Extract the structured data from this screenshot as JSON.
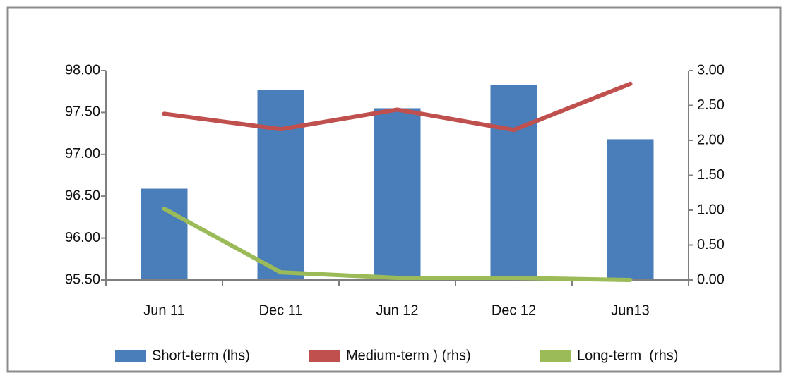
{
  "chart_data": {
    "type": "bar",
    "categories": [
      "Jun 11",
      "Dec 11",
      "Jun 12",
      "Dec 12",
      "Jun13"
    ],
    "series": [
      {
        "name": "Short-term (lhs)",
        "color": "#4a7ebb",
        "type": "bar",
        "axis": "y",
        "values": [
          96.59,
          97.77,
          97.55,
          97.83,
          97.18
        ]
      },
      {
        "name": "Medium-term ) (rhs)",
        "color": "#c0504d",
        "type": "line",
        "axis": "y2",
        "values": [
          2.38,
          2.16,
          2.44,
          2.15,
          2.81
        ]
      },
      {
        "name": "Long-term  (rhs)",
        "color": "#9bbb59",
        "type": "line",
        "axis": "y2",
        "values": [
          1.02,
          0.11,
          0.03,
          0.03,
          0.0
        ]
      }
    ],
    "ylim": [
      95.5,
      98.0
    ],
    "yticks": [
      {
        "value": 95.5,
        "label": "95.50"
      },
      {
        "value": 96.0,
        "label": "96.00"
      },
      {
        "value": 96.5,
        "label": "96.50"
      },
      {
        "value": 97.0,
        "label": "97.00"
      },
      {
        "value": 97.5,
        "label": "97.50"
      },
      {
        "value": 98.0,
        "label": "98.00"
      }
    ],
    "y2lim": [
      0,
      3
    ],
    "y2ticks": [
      {
        "value": 0,
        "label": "0.00"
      },
      {
        "value": 0.5,
        "label": "0.50"
      },
      {
        "value": 1,
        "label": "1.00"
      },
      {
        "value": 1.5,
        "label": "1.50"
      },
      {
        "value": 2,
        "label": "2.00"
      },
      {
        "value": 2.5,
        "label": "2.50"
      },
      {
        "value": 3,
        "label": "3.00"
      }
    ],
    "legend": "bottom"
  }
}
